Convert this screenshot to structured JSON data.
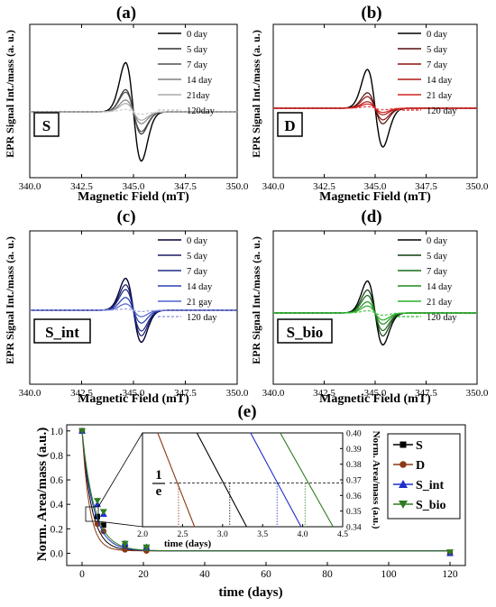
{
  "chart_data": [
    {
      "id": "a",
      "type": "line",
      "panel_label": "(a)",
      "sample_label": "S",
      "xlabel": "Magnetic Field (mT)",
      "ylabel": "EPR Signal Int./mass (a. u.)",
      "xlim": [
        340.0,
        350.0
      ],
      "xticks": [
        "340.0",
        "342.5",
        "345.0",
        "347.5",
        "350.0"
      ],
      "center": 345.0,
      "series": [
        {
          "name": "0 day",
          "amplitude": 1.0,
          "color": "#000000"
        },
        {
          "name": "5 day",
          "amplitude": 0.45,
          "color": "#303030"
        },
        {
          "name": "7 day",
          "amplitude": 0.4,
          "color": "#505050"
        },
        {
          "name": "14 day",
          "amplitude": 0.24,
          "color": "#808080"
        },
        {
          "name": "21day",
          "amplitude": 0.17,
          "color": "#a8a8a8"
        },
        {
          "name": "120day",
          "amplitude": 0.05,
          "color": "#cccccc"
        }
      ]
    },
    {
      "id": "b",
      "type": "line",
      "panel_label": "(b)",
      "sample_label": "D",
      "xlabel": "Magnetic Field (mT)",
      "ylabel": "EPR Signal Int./mass (a. u.)",
      "xlim": [
        340.0,
        350.0
      ],
      "xticks": [
        "340.0",
        "342.5",
        "345.0",
        "347.5",
        "350.0"
      ],
      "center": 345.0,
      "series": [
        {
          "name": "0 day",
          "amplitude": 1.0,
          "color": "#000000"
        },
        {
          "name": "5 day",
          "amplitude": 0.4,
          "color": "#5a0c0c"
        },
        {
          "name": "7 day",
          "amplitude": 0.3,
          "color": "#8b1010"
        },
        {
          "name": "14 day",
          "amplitude": 0.17,
          "color": "#b01818"
        },
        {
          "name": "21 day",
          "amplitude": 0.11,
          "color": "#d22020"
        },
        {
          "name": "120 day",
          "amplitude": 0.04,
          "color": "#ee3a3a"
        }
      ]
    },
    {
      "id": "c",
      "type": "line",
      "panel_label": "(c)",
      "sample_label": "S_int",
      "xlabel": "Magnetic Field (mT)",
      "ylabel": "EPR Signal Int./mass (a. u.)",
      "xlim": [
        340.0,
        350.0
      ],
      "xticks": [
        "340.0",
        "342.5",
        "345.0",
        "347.5",
        "350.0"
      ],
      "center": 345.0,
      "series": [
        {
          "name": "0 day",
          "amplitude": 1.0,
          "color": "#000033"
        },
        {
          "name": "5 day",
          "amplitude": 0.8,
          "color": "#1a1a66"
        },
        {
          "name": "7 day",
          "amplitude": 0.65,
          "color": "#1e2a88"
        },
        {
          "name": "14 day",
          "amplitude": 0.4,
          "color": "#2a40b0"
        },
        {
          "name": "21 gay",
          "amplitude": 0.2,
          "color": "#5060d0"
        },
        {
          "name": "120 day",
          "amplitude": 0.04,
          "color": "#9aa0e0"
        }
      ]
    },
    {
      "id": "d",
      "type": "line",
      "panel_label": "(d)",
      "sample_label": "S_bio",
      "xlabel": "Magnetic Field (mT)",
      "ylabel": "EPR Signal Int./mass (a. u.)",
      "xlim": [
        340.0,
        350.0
      ],
      "xticks": [
        "340.0",
        "342.5",
        "345.0",
        "347.5",
        "350.0"
      ],
      "center": 345.0,
      "series": [
        {
          "name": "0 day",
          "amplitude": 1.0,
          "color": "#000000"
        },
        {
          "name": "5 day",
          "amplitude": 0.72,
          "color": "#0f3d0f"
        },
        {
          "name": "7 day",
          "amplitude": 0.55,
          "color": "#166b16"
        },
        {
          "name": "14 day",
          "amplitude": 0.35,
          "color": "#1e8c1e"
        },
        {
          "name": "21 day",
          "amplitude": 0.22,
          "color": "#2ab02a"
        },
        {
          "name": "120 day",
          "amplitude": 0.07,
          "color": "#44cc44"
        }
      ]
    },
    {
      "id": "e",
      "type": "scatter",
      "panel_label": "(e)",
      "xlabel": "time (days)",
      "ylabel": "Norm. Area/mass (a.u.)",
      "xlim": [
        -5,
        125
      ],
      "ylim": [
        -0.1,
        1.05
      ],
      "xticks": [
        0,
        20,
        40,
        60,
        80,
        100,
        120
      ],
      "yticks": [
        0.0,
        0.2,
        0.4,
        0.6,
        0.8,
        1.0
      ],
      "x": [
        0,
        5,
        7,
        14,
        21,
        120
      ],
      "series": [
        {
          "name": "S",
          "marker": "square",
          "color": "#000000",
          "values": [
            1.0,
            0.3,
            0.23,
            0.06,
            0.04,
            0.0
          ]
        },
        {
          "name": "D",
          "marker": "circle",
          "color": "#8b3a14",
          "values": [
            1.0,
            0.24,
            0.18,
            0.03,
            0.02,
            0.0
          ]
        },
        {
          "name": "S_int",
          "marker": "triangle-up",
          "color": "#1e2dcc",
          "values": [
            1.0,
            0.4,
            0.32,
            0.08,
            0.05,
            0.0
          ]
        },
        {
          "name": "S_bio",
          "marker": "triangle-down",
          "color": "#2e7d1e",
          "values": [
            1.0,
            0.43,
            0.34,
            0.08,
            0.05,
            0.01
          ]
        }
      ],
      "inset": {
        "xlabel": "time (days)",
        "ylabel": "Norm. Area/mass (a.u.)",
        "xlim": [
          2.0,
          4.5
        ],
        "ylim": [
          0.34,
          0.4
        ],
        "xticks": [
          "2.0",
          "2.5",
          "3.0",
          "3.5",
          "4.0",
          "4.5"
        ],
        "yticks": [
          "0.34",
          "0.35",
          "0.36",
          "0.37",
          "0.38",
          "0.39",
          "0.40"
        ],
        "threshold": 0.368,
        "threshold_label_num": "1",
        "threshold_label_den": "e",
        "lines": [
          {
            "name": "D",
            "color": "#8b3a14",
            "x_top": 2.19,
            "x_bottom": 2.65,
            "x_cross": 2.45
          },
          {
            "name": "S",
            "color": "#000000",
            "x_top": 2.68,
            "x_bottom": 3.3,
            "x_cross": 3.09
          },
          {
            "name": "S_int",
            "color": "#1e2dcc",
            "x_top": 3.35,
            "x_bottom": 3.98,
            "x_cross": 3.68
          },
          {
            "name": "S_bio",
            "color": "#2e7d1e",
            "x_top": 3.72,
            "x_bottom": 4.38,
            "x_cross": 4.03
          }
        ]
      }
    }
  ]
}
